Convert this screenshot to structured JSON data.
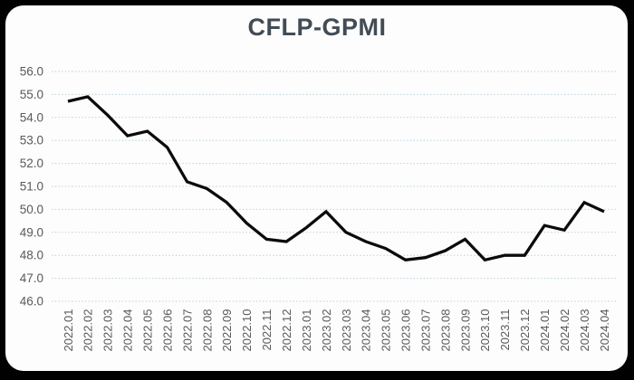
{
  "title": "CFLP-GPMI",
  "chart_data": {
    "type": "line",
    "title": "CFLP-GPMI",
    "x": [
      "2022.01",
      "2022.02",
      "2022.03",
      "2022.04",
      "2022.05",
      "2022.06",
      "2022.07",
      "2022.08",
      "2022.09",
      "2022.10",
      "2022.11",
      "2022.12",
      "2023.01",
      "2023.02",
      "2023.03",
      "2023.04",
      "2023.05",
      "2023.06",
      "2023.07",
      "2023.08",
      "2023.09",
      "2023.10",
      "2023.11",
      "2023.12",
      "2024.01",
      "2024.02",
      "2024.03",
      "2024.04"
    ],
    "values": [
      54.7,
      54.9,
      54.1,
      53.2,
      53.4,
      52.7,
      51.2,
      50.9,
      50.3,
      49.4,
      48.7,
      48.6,
      49.2,
      49.9,
      49.0,
      48.6,
      48.3,
      47.8,
      47.9,
      48.2,
      48.7,
      47.8,
      48.0,
      48.0,
      49.3,
      49.1,
      50.3,
      49.9
    ],
    "ylim": [
      46.0,
      56.0
    ],
    "ytick_step": 1.0,
    "ytick_labels": [
      "56.0",
      "55.0",
      "54.0",
      "53.0",
      "52.0",
      "51.0",
      "50.0",
      "49.0",
      "48.0",
      "47.0",
      "46.0"
    ],
    "xlabel": "",
    "ylabel": "",
    "legend": "none",
    "grid": "horizontal-dotted",
    "colors": {
      "series_line": "#0b0b0b",
      "gridline": "#b7cdda",
      "tick_label": "#57595c",
      "title": "#414c55",
      "card_background": "#fdfdfd",
      "frame_background": "#010101"
    }
  }
}
